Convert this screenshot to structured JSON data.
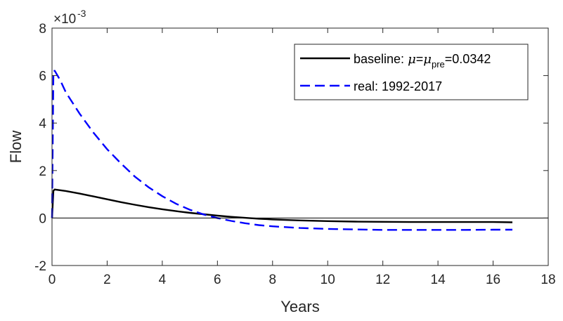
{
  "chart_data": {
    "type": "line",
    "title": "",
    "xlabel": "Years",
    "ylabel": "Flow",
    "xlim": [
      0,
      18
    ],
    "ylim": [
      -2,
      8
    ],
    "y_exponent_label": "×10",
    "y_exponent_power": "-3",
    "x_ticks": [
      "0",
      "2",
      "4",
      "6",
      "8",
      "10",
      "12",
      "14",
      "16",
      "18"
    ],
    "y_ticks": [
      "-2",
      "0",
      "2",
      "4",
      "6",
      "8"
    ],
    "zero_line": true,
    "grid": false,
    "legend_position": "top-right",
    "series": [
      {
        "name": "baseline",
        "legend_prefix": "baseline: ",
        "legend_mu": "μ",
        "legend_eq1": "=",
        "legend_sub": "pre",
        "legend_value": "=0.0342",
        "color": "#000000",
        "style": "solid",
        "x": [
          0,
          0.05,
          0.1,
          0.5,
          1,
          1.5,
          2,
          2.5,
          3,
          3.5,
          4,
          4.5,
          5,
          5.5,
          6,
          6.5,
          7,
          7.5,
          8,
          9,
          10,
          11,
          12,
          13,
          14,
          15,
          16,
          16.7
        ],
        "y": [
          0,
          1.15,
          1.2,
          1.14,
          1.03,
          0.91,
          0.79,
          0.67,
          0.56,
          0.46,
          0.37,
          0.29,
          0.22,
          0.16,
          0.1,
          0.05,
          0.01,
          -0.03,
          -0.06,
          -0.1,
          -0.13,
          -0.15,
          -0.16,
          -0.17,
          -0.17,
          -0.17,
          -0.17,
          -0.18
        ]
      },
      {
        "name": "real: 1992-2017",
        "color": "#0000ff",
        "style": "dashed",
        "x": [
          0,
          0.05,
          0.1,
          0.3,
          0.5,
          1,
          1.5,
          2,
          2.5,
          3,
          3.5,
          4,
          4.5,
          5,
          5.5,
          6,
          6.5,
          7,
          7.5,
          8,
          9,
          10,
          11,
          12,
          13,
          14,
          15,
          16,
          16.7
        ],
        "y": [
          0,
          6.2,
          6.2,
          5.8,
          5.3,
          4.4,
          3.6,
          2.9,
          2.3,
          1.75,
          1.3,
          0.92,
          0.6,
          0.35,
          0.15,
          0.0,
          -0.12,
          -0.22,
          -0.3,
          -0.35,
          -0.42,
          -0.46,
          -0.48,
          -0.5,
          -0.5,
          -0.5,
          -0.5,
          -0.49,
          -0.49
        ]
      }
    ]
  }
}
